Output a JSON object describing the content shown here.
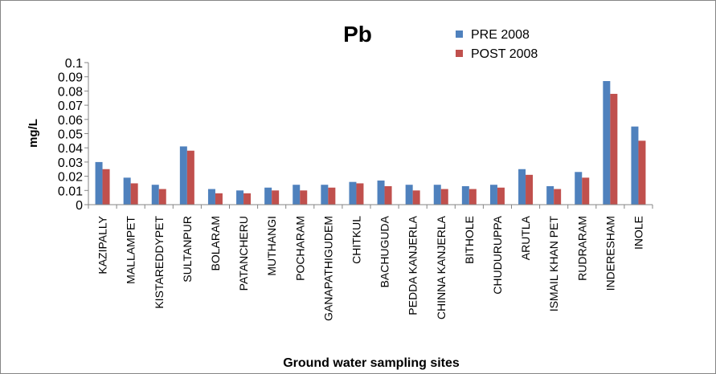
{
  "chart_data": {
    "type": "bar",
    "title": "Pb",
    "xlabel": "Ground water sampling sites",
    "ylabel": "mg/L",
    "ylim": [
      0,
      0.1
    ],
    "yticks": [
      "0",
      "0.01",
      "0.02",
      "0.03",
      "0.04",
      "0.05",
      "0.06",
      "0.07",
      "0.08",
      "0.09",
      "0.1"
    ],
    "grid": false,
    "legend_position": "top-right",
    "categories": [
      "KAZIPALLY",
      "MALLAMPET",
      "KISTAREDDYPET",
      "SULTANPUR",
      "BOLARAM",
      "PATANCHERU",
      "MUTHANGI",
      "POCHARAM",
      "GANAPATHIGUDEM",
      "CHITKUL",
      "BACHUGUDA",
      "PEDDA KANJERLA",
      "CHINNA KANJERLA",
      "BITHOLE",
      "CHUDURUPPA",
      "ARUTLA",
      "ISMAIL KHAN PET",
      "RUDRARAM",
      "INDERESHAM",
      "INOLE"
    ],
    "series": [
      {
        "name": "PRE 2008",
        "color": "#4F81BD",
        "values": [
          0.03,
          0.019,
          0.014,
          0.041,
          0.011,
          0.01,
          0.012,
          0.014,
          0.014,
          0.016,
          0.017,
          0.014,
          0.014,
          0.013,
          0.014,
          0.025,
          0.013,
          0.023,
          0.087,
          0.055
        ]
      },
      {
        "name": "POST 2008",
        "color": "#C0504D",
        "values": [
          0.025,
          0.015,
          0.011,
          0.038,
          0.008,
          0.008,
          0.01,
          0.01,
          0.012,
          0.015,
          0.013,
          0.01,
          0.011,
          0.011,
          0.012,
          0.021,
          0.011,
          0.019,
          0.078,
          0.045
        ]
      }
    ]
  }
}
